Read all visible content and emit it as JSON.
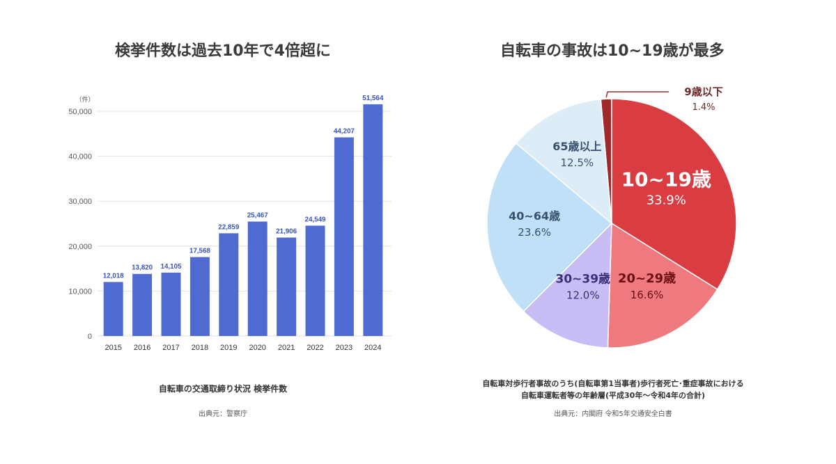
{
  "left": {
    "title": "検挙件数は過去10年で4倍超に",
    "caption": "自転車の交通取締り状況 検挙件数",
    "source": "出典元：警察庁"
  },
  "right": {
    "title": "自転車の事故は10~19歳が最多",
    "caption_line1": "自転車対歩行者事故のうち(自転車第1当事者)歩行者死亡･重症事故における",
    "caption_line2": "自転車運転者等の年齢層(平成30年～令和4年の合計)",
    "source": "出典元：内閣府 令和5年交通安全白書"
  },
  "colors": {
    "bar": "#4f6bd1",
    "grid": "#e2e2e2",
    "axis_text": "#555555",
    "bar_label": "#3a55b8",
    "slices": [
      "#9e2a2b",
      "#d93d42",
      "#ee7a7f",
      "#c8bdf5",
      "#bfe0f7",
      "#dcedf8"
    ],
    "slice_label_dark": [
      "#6b2a2a",
      "#ffffff",
      "#6b0f12",
      "#3a2f7a",
      "#37506e",
      "#37506e"
    ]
  },
  "chart_data": [
    {
      "type": "bar",
      "title": "検挙件数は過去10年で4倍超に",
      "unit_label": "（件）",
      "categories": [
        "2015",
        "2016",
        "2017",
        "2018",
        "2019",
        "2020",
        "2021",
        "2022",
        "2023",
        "2024"
      ],
      "values": [
        12018,
        13820,
        14105,
        17568,
        22859,
        25467,
        21906,
        24549,
        44207,
        51564
      ],
      "value_labels": [
        "12,018",
        "13,820",
        "14,105",
        "17,568",
        "22,859",
        "25,467",
        "21,906",
        "24,549",
        "44,207",
        "51,564"
      ],
      "yticks": [
        0,
        10000,
        20000,
        30000,
        40000,
        50000
      ],
      "ytick_labels": [
        "0",
        "10,000",
        "20,000",
        "30,000",
        "40,000",
        "50,000"
      ],
      "ylim": [
        0,
        50000
      ],
      "grid": true
    },
    {
      "type": "pie",
      "title": "自転車の事故は10~19歳が最多",
      "labels": [
        "9歳以下",
        "10~19歳",
        "20~29歳",
        "30~39歳",
        "40~64歳",
        "65歳以上"
      ],
      "values": [
        1.4,
        33.9,
        16.6,
        12.0,
        23.6,
        12.5
      ],
      "value_labels": [
        "1.4%",
        "33.9%",
        "16.6%",
        "12.0%",
        "23.6%",
        "12.5%"
      ]
    }
  ]
}
